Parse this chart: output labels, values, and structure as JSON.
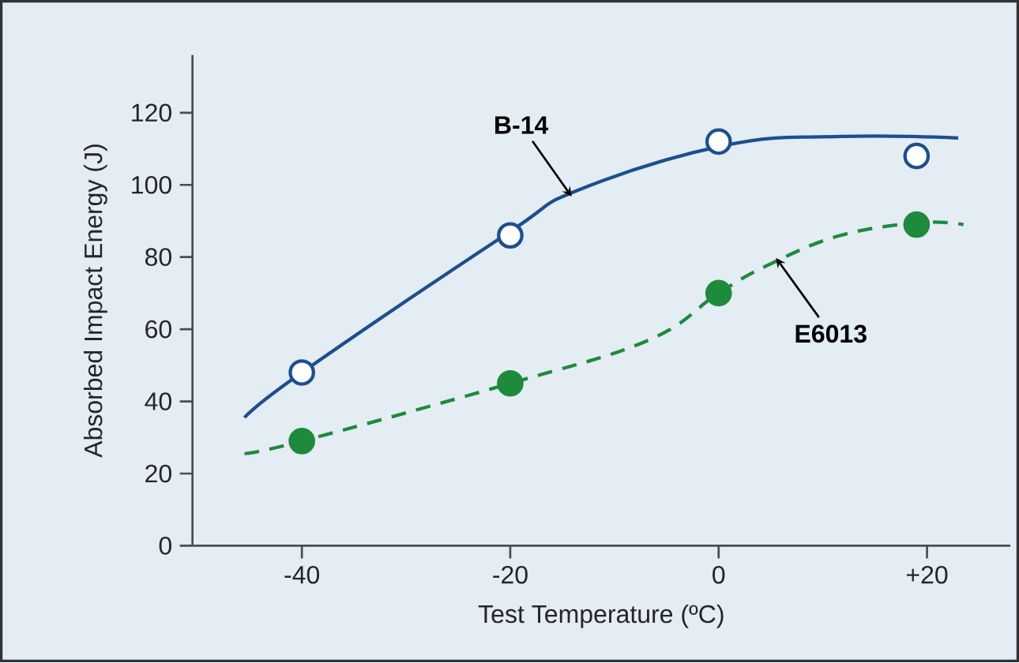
{
  "chart_data": {
    "type": "line",
    "xlabel": "Test Temperature (ºC)",
    "ylabel": "Absorbed Impact Energy (J)",
    "xlim": [
      -50.5,
      28
    ],
    "ylim": [
      0,
      136
    ],
    "xticks": [
      -40,
      -20,
      0,
      {
        "value": 20,
        "label": "+20"
      }
    ],
    "yticks": [
      0,
      20,
      40,
      60,
      80,
      100,
      120
    ],
    "grid": false,
    "legend": false,
    "series": [
      {
        "name": "B-14",
        "color": "#1c4f8f",
        "line_style": "solid",
        "marker": "none",
        "x": [
          -45.5,
          -40,
          -20.3,
          -13.5,
          0.7,
          11.7,
          23
        ],
        "values": [
          35.5,
          48,
          86.5,
          98.5,
          111,
          113.4,
          113
        ]
      },
      {
        "type": "scatter",
        "color": "#1c4f8f",
        "marker": "circle",
        "x": [
          -40,
          -20,
          0,
          19
        ],
        "values": [
          48,
          86,
          112,
          108
        ]
      },
      {
        "name": "E6013",
        "color": "#1e8a3c",
        "line_style": "dashed",
        "marker": "none",
        "x": [
          -45.5,
          -40,
          -20,
          -6.7,
          0,
          4.9,
          11.7,
          19.3,
          23.5
        ],
        "values": [
          25.6,
          29,
          45,
          57,
          70,
          78,
          86,
          89.5,
          89
        ]
      },
      {
        "type": "scatter",
        "color": "#1e8a3c",
        "marker": "circle",
        "x": [
          -40,
          -20,
          0,
          19
        ],
        "values": [
          29,
          45,
          70,
          89
        ]
      }
    ]
  }
}
